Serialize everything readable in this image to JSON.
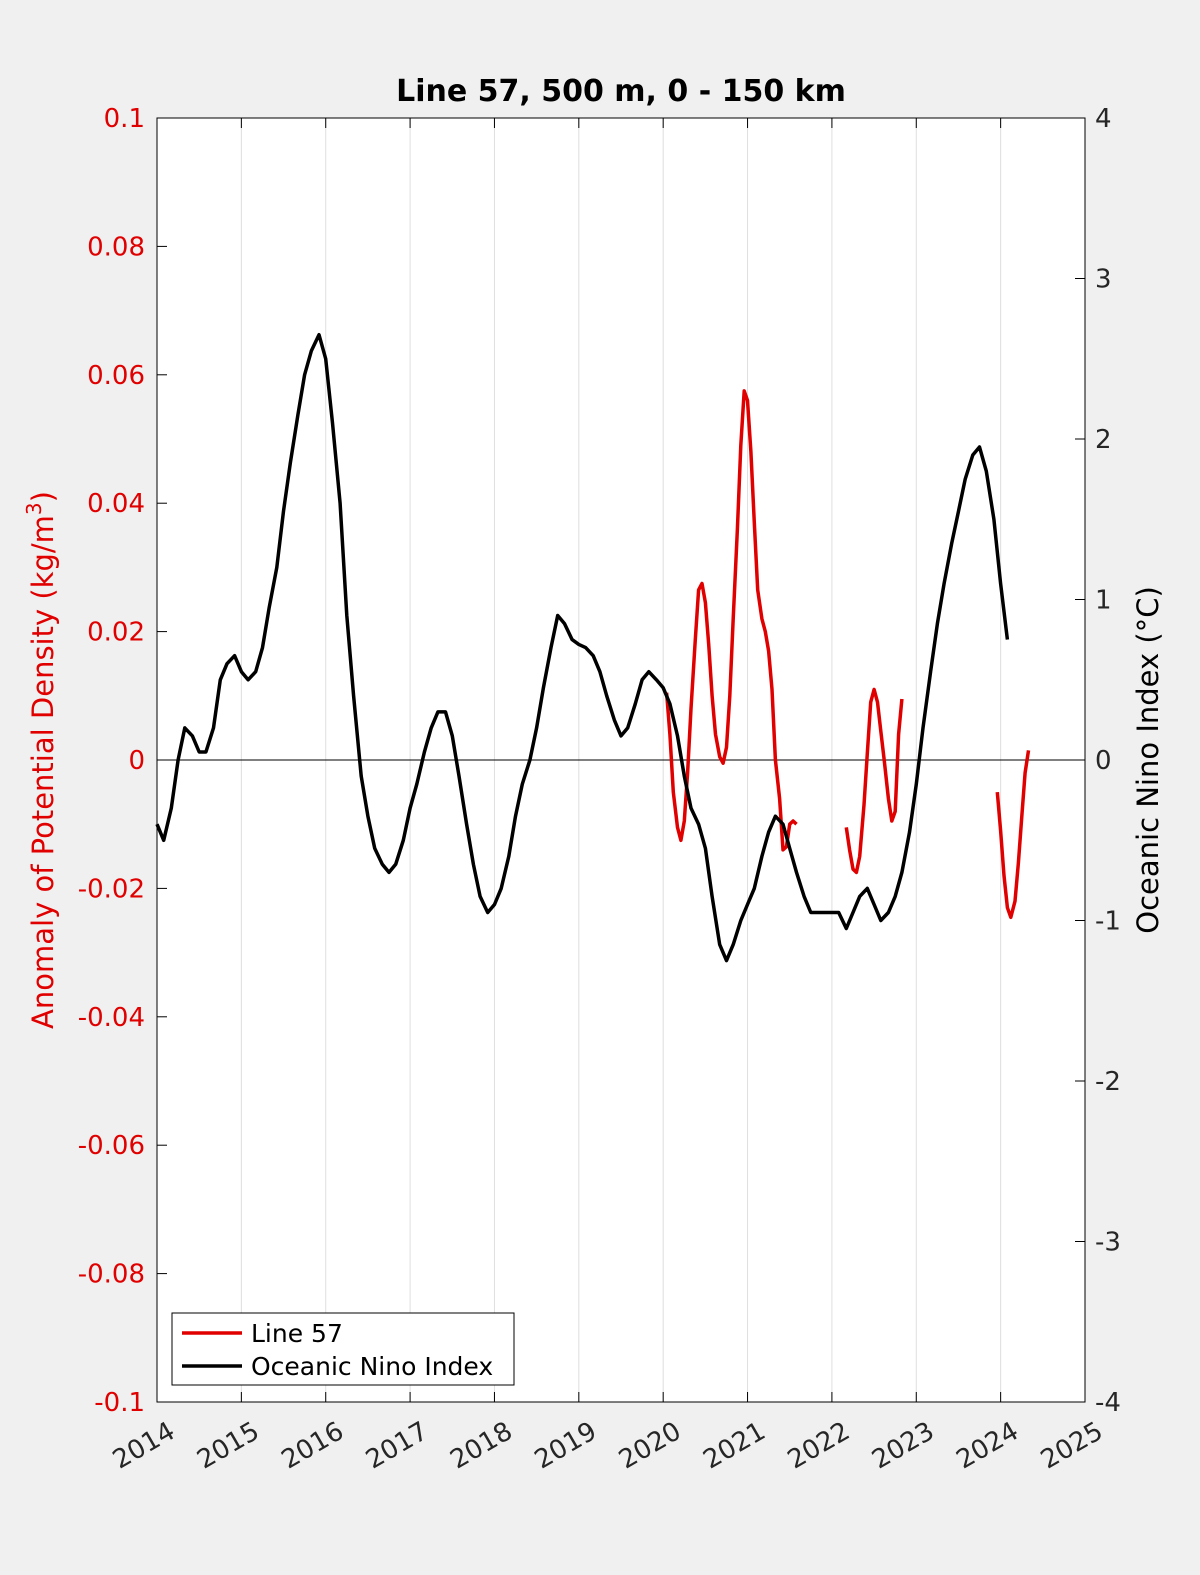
{
  "chart_data": {
    "type": "line",
    "title": "Line 57, 500 m, 0 - 150 km",
    "xlim": [
      2014,
      2025
    ],
    "x_ticks": [
      "2014",
      "2015",
      "2016",
      "2017",
      "2018",
      "2019",
      "2020",
      "2021",
      "2022",
      "2023",
      "2024",
      "2025"
    ],
    "y_left": {
      "label_main": "Anomaly of Potential Density (kg/m",
      "label_sup": "3",
      "label_end": ")",
      "ylim": [
        -0.1,
        0.1
      ],
      "ticks": [
        "0.1",
        "0.08",
        "0.06",
        "0.04",
        "0.02",
        "0",
        "-0.02",
        "-0.04",
        "-0.06",
        "-0.08",
        "-0.1"
      ],
      "tick_values": [
        0.1,
        0.08,
        0.06,
        0.04,
        0.02,
        0,
        -0.02,
        -0.04,
        -0.06,
        -0.08,
        -0.1
      ],
      "color": "#e00000"
    },
    "y_right": {
      "label": "Oceanic Nino Index (°C)",
      "ylim": [
        -4,
        4
      ],
      "ticks": [
        "4",
        "3",
        "2",
        "1",
        "0",
        "-1",
        "-2",
        "-3",
        "-4"
      ],
      "tick_values": [
        4,
        3,
        2,
        1,
        0,
        -1,
        -2,
        -3,
        -4
      ],
      "color": "#000000"
    },
    "grid": "vertical",
    "zero_line": true,
    "legend_position": "bottom-left",
    "series": [
      {
        "name": "Line 57",
        "axis": "left",
        "color": "#e00000",
        "segments": [
          [
            [
              2020.04,
              0.0105
            ],
            [
              2020.08,
              0.004
            ],
            [
              2020.12,
              -0.005
            ],
            [
              2020.17,
              -0.0105
            ],
            [
              2020.21,
              -0.0125
            ],
            [
              2020.25,
              -0.0095
            ],
            [
              2020.29,
              -0.002
            ],
            [
              2020.33,
              0.008
            ],
            [
              2020.38,
              0.0185
            ],
            [
              2020.42,
              0.0265
            ],
            [
              2020.46,
              0.0275
            ],
            [
              2020.5,
              0.0245
            ],
            [
              2020.54,
              0.018
            ],
            [
              2020.58,
              0.01
            ],
            [
              2020.62,
              0.004
            ],
            [
              2020.67,
              0.0005
            ],
            [
              2020.71,
              -0.0005
            ],
            [
              2020.75,
              0.002
            ],
            [
              2020.79,
              0.01
            ],
            [
              2020.83,
              0.022
            ],
            [
              2020.88,
              0.036
            ],
            [
              2020.92,
              0.049
            ],
            [
              2020.96,
              0.0575
            ],
            [
              2021.0,
              0.056
            ],
            [
              2021.04,
              0.048
            ],
            [
              2021.08,
              0.037
            ],
            [
              2021.12,
              0.0265
            ],
            [
              2021.17,
              0.022
            ],
            [
              2021.21,
              0.02
            ],
            [
              2021.25,
              0.017
            ],
            [
              2021.29,
              0.011
            ],
            [
              2021.33,
              0.0
            ],
            [
              2021.38,
              -0.006
            ],
            [
              2021.42,
              -0.014
            ],
            [
              2021.46,
              -0.0135
            ],
            [
              2021.5,
              -0.01
            ],
            [
              2021.54,
              -0.0095
            ],
            [
              2021.58,
              -0.01
            ]
          ],
          [
            [
              2022.17,
              -0.0105
            ],
            [
              2022.21,
              -0.014
            ],
            [
              2022.25,
              -0.017
            ],
            [
              2022.29,
              -0.0175
            ],
            [
              2022.33,
              -0.015
            ],
            [
              2022.38,
              -0.007
            ],
            [
              2022.42,
              0.001
            ],
            [
              2022.46,
              0.009
            ],
            [
              2022.5,
              0.011
            ],
            [
              2022.54,
              0.009
            ],
            [
              2022.58,
              0.0045
            ],
            [
              2022.62,
              0.0
            ],
            [
              2022.67,
              -0.006
            ],
            [
              2022.71,
              -0.0095
            ],
            [
              2022.75,
              -0.008
            ],
            [
              2022.79,
              0.004
            ],
            [
              2022.83,
              0.0095
            ]
          ],
          [
            [
              2023.96,
              -0.005
            ],
            [
              2024.0,
              -0.011
            ],
            [
              2024.04,
              -0.018
            ],
            [
              2024.08,
              -0.023
            ],
            [
              2024.12,
              -0.0245
            ],
            [
              2024.17,
              -0.022
            ],
            [
              2024.21,
              -0.016
            ],
            [
              2024.25,
              -0.009
            ],
            [
              2024.29,
              -0.002
            ],
            [
              2024.33,
              0.0015
            ]
          ]
        ]
      },
      {
        "name": "Oceanic Nino Index",
        "axis": "right",
        "color": "#000000",
        "segments": [
          [
            [
              2014.0,
              -0.4
            ],
            [
              2014.08,
              -0.5
            ],
            [
              2014.17,
              -0.3
            ],
            [
              2014.25,
              0.0
            ],
            [
              2014.33,
              0.2
            ],
            [
              2014.42,
              0.15
            ],
            [
              2014.5,
              0.05
            ],
            [
              2014.58,
              0.05
            ],
            [
              2014.67,
              0.2
            ],
            [
              2014.75,
              0.5
            ],
            [
              2014.83,
              0.6
            ],
            [
              2014.92,
              0.65
            ],
            [
              2015.0,
              0.55
            ],
            [
              2015.08,
              0.5
            ],
            [
              2015.17,
              0.55
            ],
            [
              2015.25,
              0.7
            ],
            [
              2015.33,
              0.95
            ],
            [
              2015.42,
              1.2
            ],
            [
              2015.5,
              1.55
            ],
            [
              2015.58,
              1.85
            ],
            [
              2015.67,
              2.15
            ],
            [
              2015.75,
              2.4
            ],
            [
              2015.83,
              2.55
            ],
            [
              2015.92,
              2.65
            ],
            [
              2016.0,
              2.5
            ],
            [
              2016.08,
              2.1
            ],
            [
              2016.17,
              1.6
            ],
            [
              2016.25,
              0.9
            ],
            [
              2016.33,
              0.4
            ],
            [
              2016.42,
              -0.1
            ],
            [
              2016.5,
              -0.35
            ],
            [
              2016.58,
              -0.55
            ],
            [
              2016.67,
              -0.65
            ],
            [
              2016.75,
              -0.7
            ],
            [
              2016.83,
              -0.65
            ],
            [
              2016.92,
              -0.5
            ],
            [
              2017.0,
              -0.3
            ],
            [
              2017.08,
              -0.15
            ],
            [
              2017.17,
              0.05
            ],
            [
              2017.25,
              0.2
            ],
            [
              2017.33,
              0.3
            ],
            [
              2017.42,
              0.3
            ],
            [
              2017.5,
              0.15
            ],
            [
              2017.58,
              -0.1
            ],
            [
              2017.67,
              -0.4
            ],
            [
              2017.75,
              -0.65
            ],
            [
              2017.83,
              -0.85
            ],
            [
              2017.92,
              -0.95
            ],
            [
              2018.0,
              -0.9
            ],
            [
              2018.08,
              -0.8
            ],
            [
              2018.17,
              -0.6
            ],
            [
              2018.25,
              -0.35
            ],
            [
              2018.33,
              -0.15
            ],
            [
              2018.42,
              0.0
            ],
            [
              2018.5,
              0.2
            ],
            [
              2018.58,
              0.45
            ],
            [
              2018.67,
              0.7
            ],
            [
              2018.75,
              0.9
            ],
            [
              2018.83,
              0.85
            ],
            [
              2018.92,
              0.75
            ],
            [
              2019.0,
              0.72
            ],
            [
              2019.08,
              0.7
            ],
            [
              2019.17,
              0.65
            ],
            [
              2019.25,
              0.55
            ],
            [
              2019.33,
              0.4
            ],
            [
              2019.42,
              0.25
            ],
            [
              2019.5,
              0.15
            ],
            [
              2019.58,
              0.2
            ],
            [
              2019.67,
              0.35
            ],
            [
              2019.75,
              0.5
            ],
            [
              2019.83,
              0.55
            ],
            [
              2019.92,
              0.5
            ],
            [
              2020.0,
              0.45
            ],
            [
              2020.08,
              0.35
            ],
            [
              2020.17,
              0.15
            ],
            [
              2020.25,
              -0.1
            ],
            [
              2020.33,
              -0.3
            ],
            [
              2020.42,
              -0.4
            ],
            [
              2020.5,
              -0.55
            ],
            [
              2020.58,
              -0.85
            ],
            [
              2020.67,
              -1.15
            ],
            [
              2020.75,
              -1.25
            ],
            [
              2020.83,
              -1.15
            ],
            [
              2020.92,
              -1.0
            ],
            [
              2021.0,
              -0.9
            ],
            [
              2021.08,
              -0.8
            ],
            [
              2021.17,
              -0.6
            ],
            [
              2021.25,
              -0.45
            ],
            [
              2021.33,
              -0.35
            ],
            [
              2021.42,
              -0.4
            ],
            [
              2021.5,
              -0.55
            ],
            [
              2021.58,
              -0.7
            ],
            [
              2021.67,
              -0.85
            ],
            [
              2021.75,
              -0.95
            ],
            [
              2021.83,
              -0.95
            ],
            [
              2021.92,
              -0.95
            ],
            [
              2022.0,
              -0.95
            ],
            [
              2022.08,
              -0.95
            ],
            [
              2022.17,
              -1.05
            ],
            [
              2022.25,
              -0.95
            ],
            [
              2022.33,
              -0.85
            ],
            [
              2022.42,
              -0.8
            ],
            [
              2022.5,
              -0.9
            ],
            [
              2022.58,
              -1.0
            ],
            [
              2022.67,
              -0.95
            ],
            [
              2022.75,
              -0.85
            ],
            [
              2022.83,
              -0.7
            ],
            [
              2022.92,
              -0.45
            ],
            [
              2023.0,
              -0.15
            ],
            [
              2023.08,
              0.2
            ],
            [
              2023.17,
              0.55
            ],
            [
              2023.25,
              0.85
            ],
            [
              2023.33,
              1.1
            ],
            [
              2023.42,
              1.35
            ],
            [
              2023.5,
              1.55
            ],
            [
              2023.58,
              1.75
            ],
            [
              2023.67,
              1.9
            ],
            [
              2023.75,
              1.95
            ],
            [
              2023.83,
              1.8
            ],
            [
              2023.92,
              1.5
            ],
            [
              2024.0,
              1.1
            ],
            [
              2024.08,
              0.75
            ]
          ]
        ]
      }
    ]
  }
}
